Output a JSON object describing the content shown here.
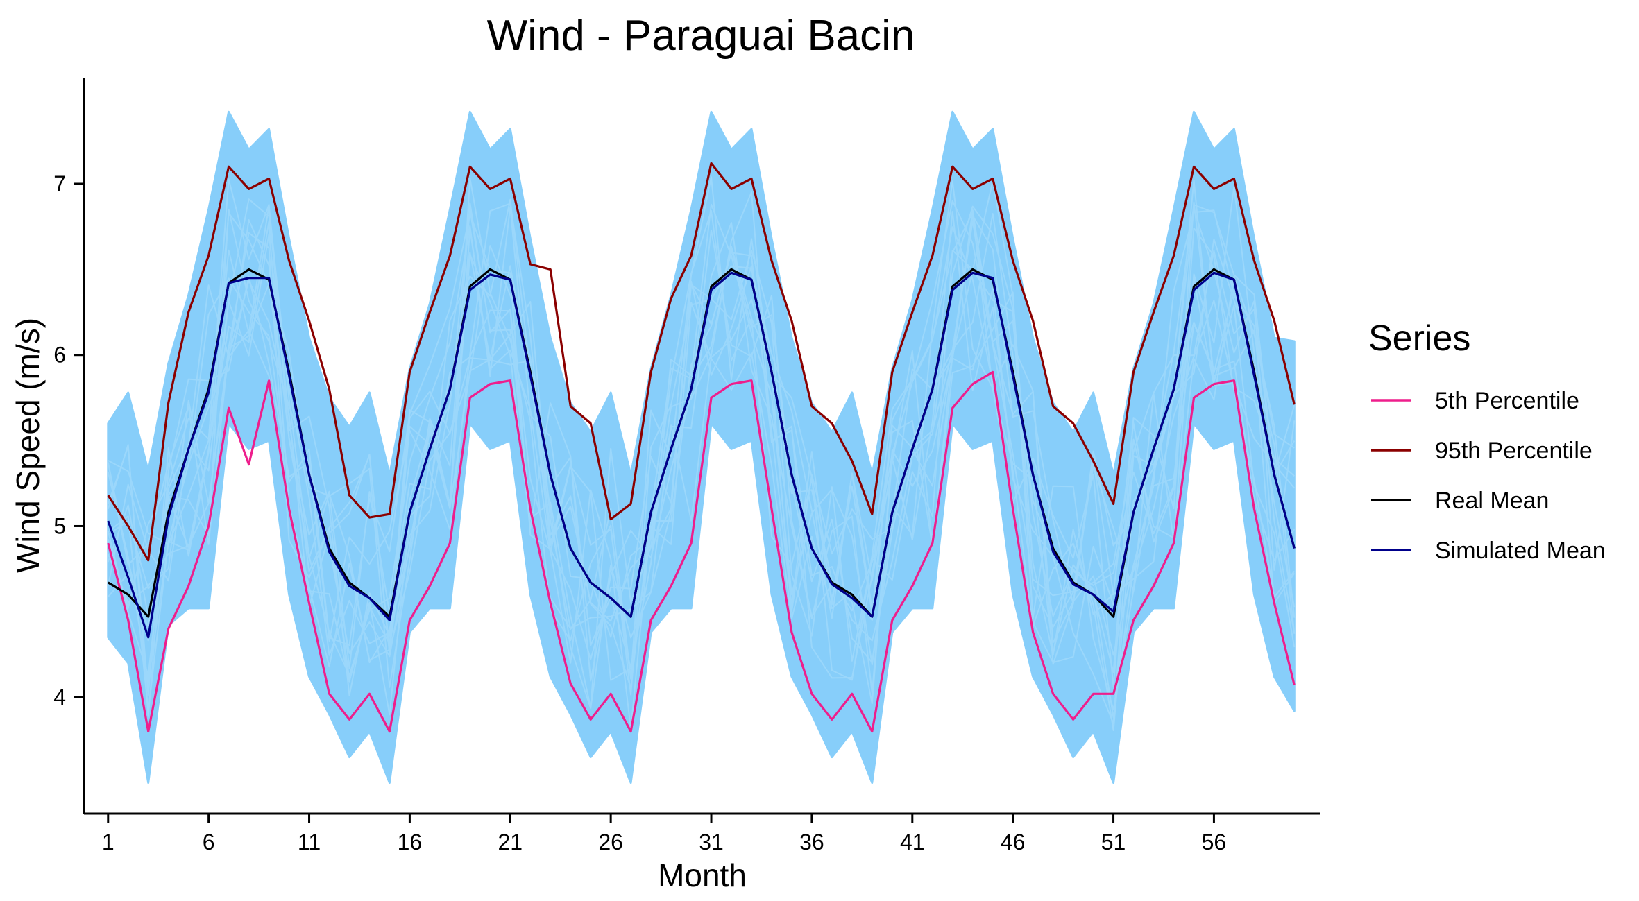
{
  "chart_data": {
    "type": "line",
    "title": "Wind - Paraguai Bacin",
    "xlabel": "Month",
    "ylabel": "Wind Speed (m/s)",
    "xlim": [
      -0.2,
      61.3
    ],
    "ylim": [
      3.32,
      7.62
    ],
    "x_ticks": [
      1,
      6,
      11,
      16,
      21,
      26,
      31,
      36,
      41,
      46,
      51,
      56
    ],
    "y_ticks": [
      4,
      5,
      6,
      7
    ],
    "grid": false,
    "legend": {
      "title": "Series",
      "position": "right"
    },
    "x": [
      1,
      2,
      3,
      4,
      5,
      6,
      7,
      8,
      9,
      10,
      11,
      12,
      13,
      14,
      15,
      16,
      17,
      18,
      19,
      20,
      21,
      22,
      23,
      24,
      25,
      26,
      27,
      28,
      29,
      30,
      31,
      32,
      33,
      34,
      35,
      36,
      37,
      38,
      39,
      40,
      41,
      42,
      43,
      44,
      45,
      46,
      47,
      48,
      49,
      50,
      51,
      52,
      53,
      54,
      55,
      56,
      57,
      58,
      59,
      60
    ],
    "simulations": {
      "color": "#87CEFA",
      "upper": [
        5.6,
        5.78,
        5.32,
        5.95,
        6.35,
        6.85,
        7.42,
        7.2,
        7.32,
        6.68,
        6.1,
        5.75,
        5.58,
        5.78,
        5.3,
        5.92,
        6.3,
        6.85,
        7.42,
        7.2,
        7.32,
        6.68,
        6.1,
        5.72,
        5.55,
        5.78,
        5.3,
        5.92,
        6.35,
        6.85,
        7.42,
        7.2,
        7.32,
        6.68,
        6.1,
        5.72,
        5.55,
        5.78,
        5.3,
        5.92,
        6.32,
        6.85,
        7.42,
        7.2,
        7.32,
        6.68,
        6.1,
        5.72,
        5.55,
        5.78,
        5.3,
        5.92,
        6.3,
        6.85,
        7.42,
        7.2,
        7.32,
        6.68,
        6.1,
        6.08
      ],
      "lower": [
        4.35,
        4.2,
        3.5,
        4.42,
        4.52,
        4.52,
        5.6,
        5.45,
        5.5,
        4.6,
        4.12,
        3.9,
        3.65,
        3.8,
        3.5,
        4.38,
        4.52,
        4.52,
        5.6,
        5.45,
        5.5,
        4.6,
        4.12,
        3.9,
        3.65,
        3.8,
        3.5,
        4.38,
        4.52,
        4.52,
        5.6,
        5.45,
        5.5,
        4.6,
        4.12,
        3.9,
        3.65,
        3.8,
        3.5,
        4.38,
        4.52,
        4.52,
        5.6,
        5.45,
        5.5,
        4.6,
        4.12,
        3.9,
        3.65,
        3.8,
        3.5,
        4.38,
        4.52,
        4.52,
        5.6,
        5.45,
        5.5,
        4.6,
        4.12,
        3.92
      ]
    },
    "series": [
      {
        "name": "5th Percentile",
        "color": "#EE1E8C",
        "values": [
          4.9,
          4.45,
          3.8,
          4.4,
          4.65,
          5.0,
          5.69,
          5.36,
          5.85,
          5.1,
          4.55,
          4.02,
          3.87,
          4.02,
          3.8,
          4.45,
          4.65,
          4.9,
          5.75,
          5.83,
          5.85,
          5.1,
          4.55,
          4.08,
          3.87,
          4.02,
          3.8,
          4.45,
          4.65,
          4.9,
          5.75,
          5.83,
          5.85,
          5.1,
          4.38,
          4.02,
          3.87,
          4.02,
          3.8,
          4.45,
          4.65,
          4.9,
          5.69,
          5.83,
          5.9,
          5.1,
          4.38,
          4.02,
          3.87,
          4.02,
          4.02,
          4.45,
          4.65,
          4.9,
          5.75,
          5.83,
          5.85,
          5.1,
          4.55,
          4.07
        ]
      },
      {
        "name": "95th Percentile",
        "color": "#8B0000",
        "values": [
          5.18,
          5.0,
          4.8,
          5.72,
          6.25,
          6.58,
          7.1,
          6.97,
          7.03,
          6.55,
          6.2,
          5.8,
          5.18,
          5.05,
          5.07,
          5.9,
          6.25,
          6.58,
          7.1,
          6.97,
          7.03,
          6.53,
          6.5,
          5.7,
          5.6,
          5.04,
          5.13,
          5.9,
          6.33,
          6.58,
          7.12,
          6.97,
          7.03,
          6.55,
          6.2,
          5.7,
          5.6,
          5.38,
          5.07,
          5.9,
          6.25,
          6.58,
          7.1,
          6.97,
          7.03,
          6.55,
          6.2,
          5.7,
          5.6,
          5.38,
          5.13,
          5.9,
          6.25,
          6.58,
          7.1,
          6.97,
          7.03,
          6.55,
          6.2,
          5.71
        ]
      },
      {
        "name": "Real Mean",
        "color": "#000000",
        "values": [
          4.67,
          4.6,
          4.47,
          5.08,
          5.45,
          5.8,
          6.42,
          6.5,
          6.44,
          5.9,
          5.3,
          4.87,
          4.67,
          4.58,
          4.47,
          5.08,
          5.45,
          5.8,
          6.4,
          6.5,
          6.44,
          5.9,
          5.3,
          4.87,
          4.67,
          4.58,
          4.47,
          5.08,
          5.45,
          5.8,
          6.4,
          6.5,
          6.44,
          5.9,
          5.3,
          4.87,
          4.67,
          4.6,
          4.47,
          5.08,
          5.45,
          5.8,
          6.4,
          6.5,
          6.44,
          5.9,
          5.3,
          4.87,
          4.67,
          4.6,
          4.47,
          5.08,
          5.45,
          5.8,
          6.4,
          6.5,
          6.44,
          5.9,
          5.3,
          4.87
        ]
      },
      {
        "name": "Simulated Mean",
        "color": "#00008B",
        "values": [
          5.03,
          4.7,
          4.35,
          5.05,
          5.45,
          5.78,
          6.42,
          6.45,
          6.45,
          5.88,
          5.3,
          4.85,
          4.65,
          4.58,
          4.45,
          5.08,
          5.45,
          5.8,
          6.38,
          6.47,
          6.44,
          5.88,
          5.3,
          4.87,
          4.67,
          4.58,
          4.47,
          5.08,
          5.45,
          5.8,
          6.38,
          6.48,
          6.44,
          5.9,
          5.3,
          4.87,
          4.66,
          4.58,
          4.47,
          5.08,
          5.45,
          5.8,
          6.38,
          6.48,
          6.45,
          5.88,
          5.3,
          4.85,
          4.66,
          4.6,
          4.5,
          5.08,
          5.45,
          5.8,
          6.38,
          6.48,
          6.44,
          5.88,
          5.3,
          4.87
        ]
      }
    ]
  }
}
